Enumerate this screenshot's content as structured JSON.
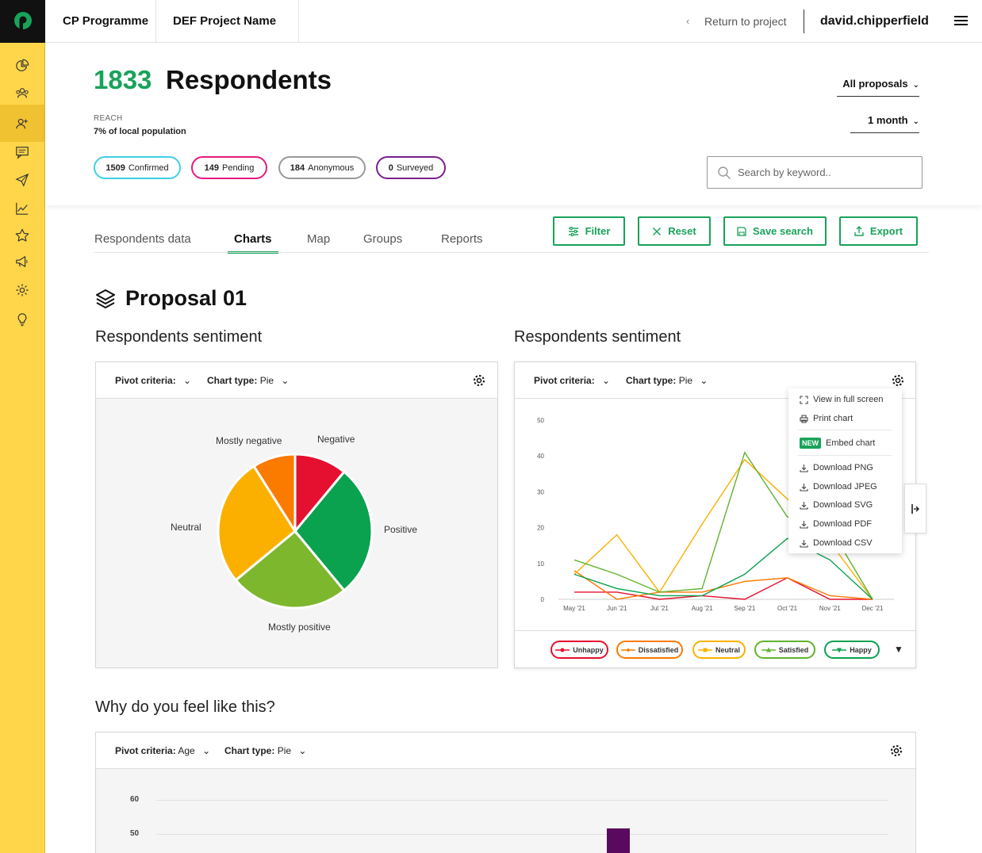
{
  "topbar": {
    "programme": "CP Programme",
    "project": "DEF Project Name",
    "return_label": "Return to project",
    "username": "david.chipperfield"
  },
  "sidebar": {
    "icons": [
      "pie-chart-icon",
      "people-icon",
      "add-user-icon",
      "message-icon",
      "send-icon",
      "line-chart-icon",
      "star-icon",
      "megaphone-icon",
      "settings-icon",
      "lightbulb-icon"
    ],
    "active_index": 2
  },
  "header": {
    "count": "1833",
    "count_label": "Respondents",
    "reach_label": "REACH",
    "reach_value": "7% of local population",
    "pills": [
      {
        "count": "1509",
        "label": "Confirmed",
        "color": "#3fd0e6"
      },
      {
        "count": "149",
        "label": "Pending",
        "color": "#e6197f"
      },
      {
        "count": "184",
        "label": "Anonymous",
        "color": "#999999"
      },
      {
        "count": "0",
        "label": "Surveyed",
        "color": "#7a1f8f"
      }
    ],
    "proposal_filter": "All proposals",
    "period_filter": "1 month",
    "search_placeholder": "Search by keyword.."
  },
  "tabs": [
    "Respondents data",
    "Charts",
    "Map",
    "Groups",
    "Reports"
  ],
  "active_tab": "Charts",
  "actions": {
    "filter": "Filter",
    "reset": "Reset",
    "save_search": "Save search",
    "export": "Export"
  },
  "proposal_title": "Proposal 01",
  "left_chart": {
    "section_title": "Respondents sentiment",
    "pivot_label": "Pivot criteria:",
    "pivot_value": "",
    "type_label": "Chart type:",
    "type_value": "Pie",
    "chart_data": {
      "type": "pie",
      "slices": [
        {
          "label": "Negative",
          "value": 11,
          "color": "#e5102f"
        },
        {
          "label": "Positive",
          "value": 28,
          "color": "#0aa14f"
        },
        {
          "label": "Mostly positive",
          "value": 25,
          "color": "#7db72e"
        },
        {
          "label": "Neutral",
          "value": 27,
          "color": "#fbb000"
        },
        {
          "label": "Mostly negative",
          "value": 9,
          "color": "#fb7a00"
        }
      ]
    }
  },
  "right_chart": {
    "section_title": "Respondents sentiment",
    "pivot_label": "Pivot criteria:",
    "pivot_value": "",
    "type_label": "Chart type:",
    "type_value": "Pie",
    "chart_data": {
      "type": "line",
      "x": [
        "May '21",
        "Jun '21",
        "Jul '21",
        "Aug '21",
        "Sep '21",
        "Oct '21",
        "Nov '21",
        "Dec '21"
      ],
      "yticks": [
        0,
        10,
        20,
        30,
        40,
        50
      ],
      "ylim": [
        0,
        50
      ],
      "series": [
        {
          "name": "Unhappy",
          "color": "#e5102f",
          "values": [
            2,
            2,
            0,
            1,
            0,
            6,
            0,
            0
          ]
        },
        {
          "name": "Dissatisfied",
          "color": "#fb7a00",
          "values": [
            8,
            0,
            2,
            2,
            5,
            6,
            1,
            0
          ]
        },
        {
          "name": "Neutral",
          "color": "#fbb000",
          "values": [
            7,
            18,
            2,
            21,
            39,
            28,
            16,
            0
          ]
        },
        {
          "name": "Satisfied",
          "color": "#62b22f",
          "values": [
            11,
            7,
            2,
            3,
            41,
            23,
            20,
            0
          ]
        },
        {
          "name": "Happy",
          "color": "#0aa14f",
          "values": [
            7,
            3,
            1,
            1,
            7,
            17,
            11,
            0
          ]
        }
      ]
    },
    "menu": {
      "items": [
        "View in full  screen",
        "Print chart",
        "Embed chart",
        "Download PNG",
        "Download JPEG",
        "Download SVG",
        "Download PDF",
        "Download CSV"
      ],
      "new_badge": "NEW"
    }
  },
  "bottom_chart": {
    "section_title": "Why do you feel like this?",
    "pivot_label": "Pivot criteria:",
    "pivot_value": "Age",
    "type_label": "Chart type:",
    "type_value": "Pie",
    "yticks": [
      "60",
      "50"
    ],
    "bar_color": "#5a0a5e"
  }
}
